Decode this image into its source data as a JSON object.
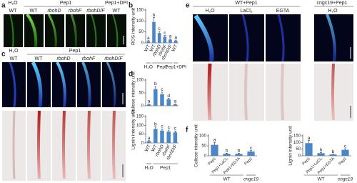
{
  "panels": {
    "a": {
      "label": "a",
      "treatments": [
        "H₂O",
        "Pep1",
        "Pep1+DPI"
      ],
      "genotypes": [
        "WT",
        "WT",
        "rbohD",
        "rbohF",
        "rbohD/F",
        "WT"
      ]
    },
    "c": {
      "label": "c",
      "treatments": [
        "H₂O",
        "Pep1"
      ],
      "genotypes": [
        "WT",
        "WT",
        "rbohD",
        "rbohF",
        "rbohD/F"
      ]
    },
    "e": {
      "label": "e",
      "genotypes": [
        "WT+Pep1",
        "cngc19+Pep1"
      ],
      "treatments": [
        "H₂O",
        "LaCl₃",
        "EGTA",
        "H₂O"
      ]
    }
  },
  "chart_data": [
    {
      "type": "bar",
      "panel": "b",
      "ylabel": "ROS intensity unit",
      "categories": [
        "WT",
        "WT",
        "rbohD",
        "rbohF",
        "rbohD/F",
        "WT"
      ],
      "groups": [
        "H₂O",
        "Pep1",
        "Pep1+DPI"
      ],
      "values": [
        8,
        95,
        45,
        28,
        15,
        10
      ],
      "errors": [
        3,
        20,
        8,
        6,
        3,
        3
      ],
      "letters": [
        "a",
        "b",
        "c",
        "c",
        "a",
        "a"
      ],
      "ylim": [
        0,
        150
      ],
      "yticks": [
        0,
        50,
        100,
        150
      ],
      "color": "#4a86c8"
    },
    {
      "type": "bar",
      "panel": "d",
      "ylabel": "Callose intensity unit",
      "values": [
        5,
        65,
        45,
        25,
        5
      ],
      "errors": [
        2,
        10,
        8,
        4,
        2
      ],
      "letters": [
        "a",
        "b",
        "c",
        "d",
        "a"
      ],
      "ylim": [
        0,
        100
      ],
      "yticks": [
        0,
        50,
        100
      ],
      "color": "#4a86c8"
    },
    {
      "type": "bar",
      "ylabel": "Lignin intensity unit",
      "categories": [
        "WT",
        "WT",
        "rbohD",
        "rbohF",
        "rbohD/F"
      ],
      "groups": [
        "H₂O",
        "Pep1"
      ],
      "values": [
        10,
        80,
        70,
        65,
        60
      ],
      "errors": [
        3,
        12,
        10,
        8,
        8
      ],
      "letters": [
        "a",
        "b",
        "c",
        "c",
        "c"
      ],
      "ylim": [
        0,
        150
      ],
      "yticks": [
        0,
        50,
        100,
        150
      ],
      "color": "#4a86c8"
    },
    {
      "type": "bar",
      "panel": "f",
      "ylabel": "Callose intensity unit",
      "categories": [
        "Pep1",
        "Pep1+LaCl₃",
        "Pep1+EGTA",
        "Pep1"
      ],
      "groups": [
        "WT",
        "cngc19"
      ],
      "values": [
        55,
        10,
        10,
        22
      ],
      "errors": [
        12,
        3,
        3,
        4
      ],
      "letters": [
        "a",
        "b",
        "b",
        "c"
      ],
      "ylim": [
        0,
        100
      ],
      "yticks": [
        0,
        50,
        100
      ],
      "color": "#4a86c8"
    },
    {
      "type": "bar",
      "ylabel": "Lignin intensity unit",
      "categories": [
        "Pep1",
        "Pep1+LaCl₃",
        "Pep1+EGTA",
        "Pep1"
      ],
      "groups": [
        "WT",
        "cngc19"
      ],
      "values": [
        95,
        20,
        10,
        45
      ],
      "errors": [
        20,
        5,
        3,
        8
      ],
      "letters": [
        "a",
        "b",
        "b",
        "c"
      ],
      "ylim": [
        0,
        150
      ],
      "yticks": [
        0,
        50,
        100,
        150
      ],
      "color": "#4a86c8"
    }
  ]
}
